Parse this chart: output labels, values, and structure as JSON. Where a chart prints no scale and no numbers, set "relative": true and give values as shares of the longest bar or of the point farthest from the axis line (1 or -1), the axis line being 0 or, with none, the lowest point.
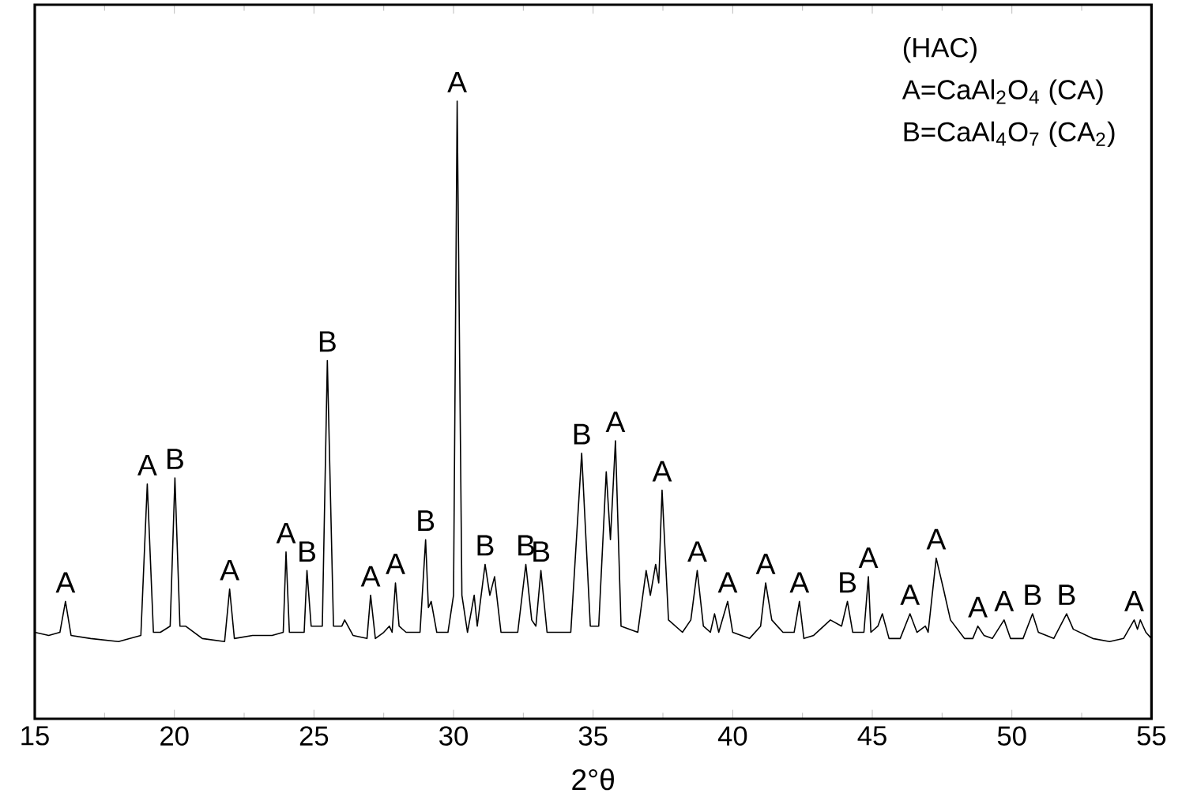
{
  "chart_data": {
    "type": "line",
    "relative": true,
    "xlabel": "2°θ",
    "xlim": [
      15,
      55
    ],
    "xticks": [
      15,
      20,
      25,
      30,
      35,
      40,
      45,
      50,
      55
    ],
    "marker": "none",
    "line_style": "solid",
    "series": [
      {
        "color": "#000000",
        "x": [
          15.0,
          15.5,
          15.9,
          16.1,
          16.3,
          17.0,
          18.0,
          18.8,
          19.03,
          19.25,
          19.5,
          19.85,
          20.02,
          20.2,
          20.4,
          21.0,
          21.8,
          21.98,
          22.15,
          22.8,
          23.5,
          23.9,
          24.0,
          24.12,
          24.65,
          24.75,
          24.9,
          25.3,
          25.48,
          25.7,
          26.0,
          26.1,
          26.4,
          26.9,
          27.03,
          27.2,
          27.5,
          27.7,
          27.8,
          27.92,
          28.05,
          28.3,
          28.8,
          29.0,
          29.1,
          29.2,
          29.4,
          29.8,
          30.0,
          30.13,
          30.3,
          30.5,
          30.74,
          30.85,
          31.13,
          31.3,
          31.47,
          31.7,
          32.3,
          32.59,
          32.8,
          32.95,
          33.13,
          33.35,
          34.2,
          34.59,
          34.9,
          35.2,
          35.47,
          35.62,
          35.8,
          36.0,
          36.6,
          36.9,
          37.05,
          37.24,
          37.35,
          37.47,
          37.7,
          38.2,
          38.5,
          38.73,
          38.95,
          39.2,
          39.35,
          39.5,
          39.82,
          40.0,
          40.6,
          41.0,
          41.18,
          41.4,
          41.8,
          42.2,
          42.39,
          42.55,
          42.9,
          43.5,
          43.9,
          44.11,
          44.3,
          44.7,
          44.86,
          44.95,
          45.2,
          45.36,
          45.6,
          46.0,
          46.35,
          46.6,
          46.9,
          47.0,
          47.29,
          47.55,
          47.8,
          48.3,
          48.6,
          48.78,
          49.0,
          49.3,
          49.72,
          49.95,
          50.4,
          50.74,
          50.95,
          51.5,
          51.96,
          52.2,
          52.9,
          53.5,
          54.0,
          54.38,
          54.5,
          54.6,
          54.8,
          55.0
        ],
        "values": [
          0.14,
          0.135,
          0.14,
          0.19,
          0.135,
          0.13,
          0.125,
          0.135,
          0.38,
          0.14,
          0.14,
          0.15,
          0.39,
          0.15,
          0.15,
          0.13,
          0.125,
          0.21,
          0.13,
          0.135,
          0.135,
          0.14,
          0.27,
          0.14,
          0.14,
          0.24,
          0.15,
          0.15,
          0.58,
          0.15,
          0.15,
          0.16,
          0.135,
          0.13,
          0.2,
          0.13,
          0.14,
          0.15,
          0.14,
          0.22,
          0.15,
          0.14,
          0.14,
          0.29,
          0.18,
          0.19,
          0.14,
          0.14,
          0.2,
          1.0,
          0.2,
          0.14,
          0.2,
          0.15,
          0.25,
          0.2,
          0.23,
          0.14,
          0.14,
          0.25,
          0.16,
          0.15,
          0.24,
          0.14,
          0.14,
          0.43,
          0.15,
          0.15,
          0.4,
          0.29,
          0.45,
          0.15,
          0.14,
          0.24,
          0.2,
          0.25,
          0.22,
          0.37,
          0.16,
          0.14,
          0.16,
          0.24,
          0.15,
          0.14,
          0.17,
          0.14,
          0.19,
          0.14,
          0.13,
          0.15,
          0.22,
          0.16,
          0.14,
          0.14,
          0.19,
          0.13,
          0.135,
          0.16,
          0.15,
          0.19,
          0.14,
          0.14,
          0.23,
          0.14,
          0.15,
          0.17,
          0.13,
          0.13,
          0.17,
          0.14,
          0.15,
          0.14,
          0.26,
          0.21,
          0.16,
          0.13,
          0.13,
          0.15,
          0.135,
          0.13,
          0.16,
          0.13,
          0.13,
          0.17,
          0.14,
          0.13,
          0.17,
          0.145,
          0.13,
          0.125,
          0.13,
          0.16,
          0.145,
          0.16,
          0.14,
          0.13
        ]
      }
    ],
    "annotations": [
      "(HAC)",
      "A=CaAl$_{2}$O$_{4}$ (CA)",
      "B=CaAl$_{4}$O$_{7}$ (CA$_{2}$)",
      {
        "text": "A",
        "x": 16.1,
        "y": 0.19
      },
      {
        "text": "A",
        "x": 19.03,
        "y": 0.38
      },
      {
        "text": "B",
        "x": 20.02,
        "y": 0.39
      },
      {
        "text": "A",
        "x": 21.98,
        "y": 0.21
      },
      {
        "text": "A",
        "x": 24.0,
        "y": 0.27
      },
      {
        "text": "B",
        "x": 24.75,
        "y": 0.24
      },
      {
        "text": "B",
        "x": 25.48,
        "y": 0.58
      },
      {
        "text": "A",
        "x": 27.03,
        "y": 0.2
      },
      {
        "text": "A",
        "x": 27.92,
        "y": 0.22
      },
      {
        "text": "B",
        "x": 29.0,
        "y": 0.29
      },
      {
        "text": "A",
        "x": 30.13,
        "y": 1.0
      },
      {
        "text": "B",
        "x": 31.13,
        "y": 0.25
      },
      {
        "text": "B",
        "x": 32.59,
        "y": 0.25
      },
      {
        "text": "B",
        "x": 33.13,
        "y": 0.24
      },
      {
        "text": "B",
        "x": 34.59,
        "y": 0.43
      },
      {
        "text": "A",
        "x": 35.8,
        "y": 0.45
      },
      {
        "text": "A",
        "x": 37.47,
        "y": 0.37
      },
      {
        "text": "A",
        "x": 38.73,
        "y": 0.24
      },
      {
        "text": "A",
        "x": 39.82,
        "y": 0.19
      },
      {
        "text": "A",
        "x": 41.18,
        "y": 0.22
      },
      {
        "text": "A",
        "x": 42.39,
        "y": 0.19
      },
      {
        "text": "B",
        "x": 44.11,
        "y": 0.19
      },
      {
        "text": "A",
        "x": 44.86,
        "y": 0.23
      },
      {
        "text": "A",
        "x": 46.35,
        "y": 0.17
      },
      {
        "text": "A",
        "x": 47.29,
        "y": 0.26
      },
      {
        "text": "A",
        "x": 48.78,
        "y": 0.15
      },
      {
        "text": "A",
        "x": 49.72,
        "y": 0.16
      },
      {
        "text": "B",
        "x": 50.74,
        "y": 0.17
      },
      {
        "text": "B",
        "x": 51.96,
        "y": 0.17
      },
      {
        "text": "A",
        "x": 54.38,
        "y": 0.16
      }
    ]
  }
}
